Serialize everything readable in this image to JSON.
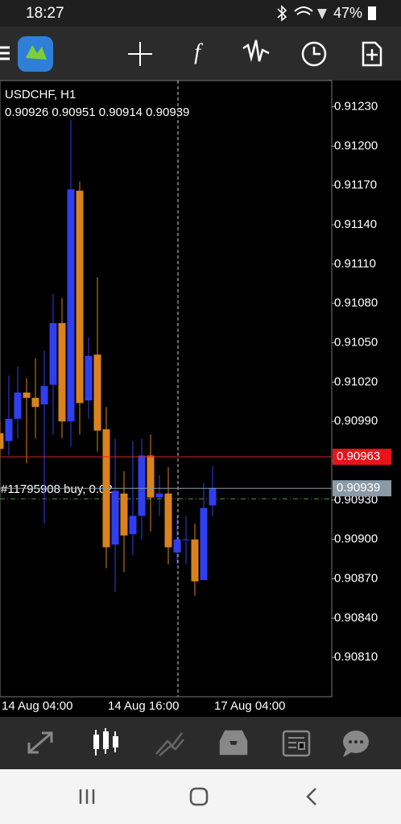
{
  "status_bar": {
    "time": "18:27",
    "battery": "47%"
  },
  "chart_data": {
    "type": "candlestick",
    "title": "USDCHF, H1",
    "ohlc_line": "0.90926 0.90951 0.90914 0.90939",
    "up_color": "#2f3ff0",
    "down_color": "#d9821e",
    "categories": [
      "14 Aug 04:00",
      null,
      null,
      null,
      null,
      null,
      null,
      null,
      null,
      null,
      null,
      null,
      "14 Aug 16:00",
      null,
      null,
      null,
      null,
      null,
      null,
      null,
      null,
      null,
      null,
      null,
      "17 Aug 04:00"
    ],
    "candles": [
      {
        "open": 0.90981,
        "high": 0.9099,
        "low": 0.90964,
        "close": 0.90969
      },
      {
        "open": 0.90975,
        "high": 0.91025,
        "low": 0.90964,
        "close": 0.90992
      },
      {
        "open": 0.90992,
        "high": 0.91032,
        "low": 0.90977,
        "close": 0.91012
      },
      {
        "open": 0.91012,
        "high": 0.91023,
        "low": 0.90958,
        "close": 0.91008
      },
      {
        "open": 0.91008,
        "high": 0.91038,
        "low": 0.90977,
        "close": 0.91001
      },
      {
        "open": 0.91003,
        "high": 0.91044,
        "low": 0.90912,
        "close": 0.91017
      },
      {
        "open": 0.91018,
        "high": 0.91087,
        "low": 0.9098,
        "close": 0.91065
      },
      {
        "open": 0.91065,
        "high": 0.91084,
        "low": 0.90977,
        "close": 0.9099
      },
      {
        "open": 0.9099,
        "high": 0.9122,
        "low": 0.90971,
        "close": 0.91167
      },
      {
        "open": 0.91166,
        "high": 0.91173,
        "low": 0.9098,
        "close": 0.91004
      },
      {
        "open": 0.91006,
        "high": 0.91054,
        "low": 0.90992,
        "close": 0.9104
      },
      {
        "open": 0.91041,
        "high": 0.911,
        "low": 0.90967,
        "close": 0.90983
      },
      {
        "open": 0.90984,
        "high": 0.91001,
        "low": 0.90878,
        "close": 0.90894
      },
      {
        "open": 0.90896,
        "high": 0.90977,
        "low": 0.9086,
        "close": 0.90937
      },
      {
        "open": 0.90935,
        "high": 0.90952,
        "low": 0.90875,
        "close": 0.90903
      },
      {
        "open": 0.90904,
        "high": 0.90975,
        "low": 0.90888,
        "close": 0.90918
      },
      {
        "open": 0.90918,
        "high": 0.90977,
        "low": 0.909,
        "close": 0.90964
      },
      {
        "open": 0.90964,
        "high": 0.9098,
        "low": 0.90906,
        "close": 0.90932
      },
      {
        "open": 0.90932,
        "high": 0.90949,
        "low": 0.90918,
        "close": 0.90935
      },
      {
        "open": 0.90935,
        "high": 0.90955,
        "low": 0.90881,
        "close": 0.90894
      },
      {
        "open": 0.9089,
        "high": 0.90918,
        "low": 0.90881,
        "close": 0.909
      },
      {
        "open": 0.909,
        "high": 0.90918,
        "low": 0.90881,
        "close": 0.909
      },
      {
        "open": 0.909,
        "high": 0.90912,
        "low": 0.90857,
        "close": 0.90868
      },
      {
        "open": 0.90869,
        "high": 0.90943,
        "low": 0.90869,
        "close": 0.90924
      },
      {
        "open": 0.90926,
        "high": 0.90956,
        "low": 0.90918,
        "close": 0.90939
      }
    ],
    "ylim": [
      0.9078,
      0.9125
    ],
    "yticks": [
      {
        "value": 0.9123,
        "label": "0.91230"
      },
      {
        "value": 0.912,
        "label": "0.91200"
      },
      {
        "value": 0.9117,
        "label": "0.91170"
      },
      {
        "value": 0.9114,
        "label": "0.91140"
      },
      {
        "value": 0.9111,
        "label": "0.91110"
      },
      {
        "value": 0.9108,
        "label": "0.91080"
      },
      {
        "value": 0.9105,
        "label": "0.91050"
      },
      {
        "value": 0.9102,
        "label": "0.91020"
      },
      {
        "value": 0.9099,
        "label": "0.90990"
      },
      {
        "value": 0.9096,
        "label": "0.90960"
      },
      {
        "value": 0.9093,
        "label": "0.90930"
      },
      {
        "value": 0.909,
        "label": "0.90900"
      },
      {
        "value": 0.9087,
        "label": "0.90870"
      },
      {
        "value": 0.9084,
        "label": "0.90840"
      },
      {
        "value": 0.9081,
        "label": "0.90810"
      }
    ],
    "ask": {
      "value": 0.90963,
      "label": "0.90963"
    },
    "bid": {
      "value": 0.90939,
      "label": "0.90939"
    },
    "order": {
      "value": 0.90931,
      "label": "#11795908 buy, 0.02"
    }
  }
}
